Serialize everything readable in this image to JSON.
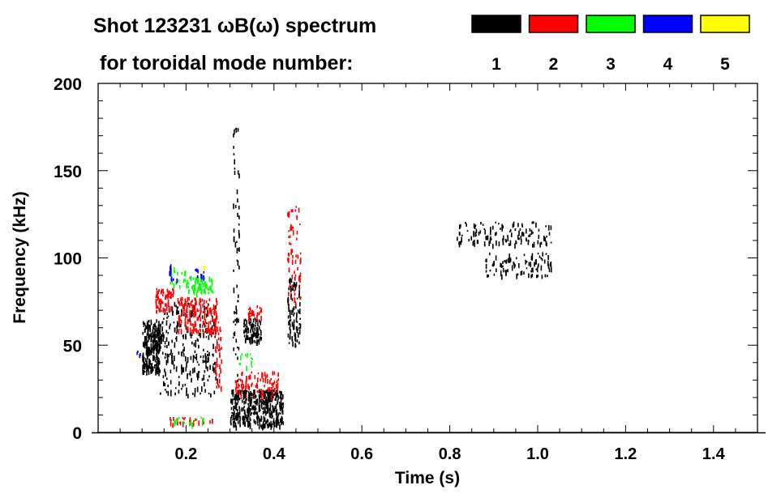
{
  "chart_data": {
    "type": "heatmap",
    "title_line1": "Shot 123231 ωB(ω) spectrum",
    "title_line2": "for toroidal mode number:",
    "xlabel": "Time (s)",
    "ylabel": "Frequency (kHz)",
    "xlim": [
      0,
      1.5
    ],
    "ylim": [
      0,
      200
    ],
    "xticks": [
      0.2,
      0.4,
      0.6,
      0.8,
      1.0,
      1.2,
      1.4
    ],
    "xtick_labels": [
      "0.2",
      "0.4",
      "0.6",
      "0.8",
      "1.0",
      "1.2",
      "1.4"
    ],
    "yticks": [
      0,
      50,
      100,
      150,
      200
    ],
    "ytick_labels": [
      "0",
      "50",
      "100",
      "150",
      "200"
    ],
    "legend": [
      {
        "mode": "1",
        "color": "#000000"
      },
      {
        "mode": "2",
        "color": "#ff0000"
      },
      {
        "mode": "3",
        "color": "#00ff00"
      },
      {
        "mode": "4",
        "color": "#0000ff"
      },
      {
        "mode": "5",
        "color": "#ffff00"
      }
    ],
    "regions": [
      {
        "mode": 1,
        "t": [
          0.1,
          0.14
        ],
        "f": [
          35,
          65
        ],
        "n": 260
      },
      {
        "mode": 1,
        "t": [
          0.14,
          0.27
        ],
        "f": [
          22,
          75
        ],
        "n": 260
      },
      {
        "mode": 1,
        "t": [
          0.3,
          0.42
        ],
        "f": [
          4,
          25
        ],
        "n": 420
      },
      {
        "mode": 1,
        "t": [
          0.33,
          0.37
        ],
        "f": [
          52,
          66
        ],
        "n": 90
      },
      {
        "mode": 1,
        "t": [
          0.43,
          0.46
        ],
        "f": [
          50,
          90
        ],
        "n": 90
      },
      {
        "mode": 1,
        "t": [
          0.305,
          0.32
        ],
        "f": [
          30,
          175
        ],
        "n": 60
      },
      {
        "mode": 1,
        "t": [
          0.81,
          1.03
        ],
        "f": [
          108,
          121
        ],
        "n": 120
      },
      {
        "mode": 1,
        "t": [
          0.88,
          1.03
        ],
        "f": [
          90,
          104
        ],
        "n": 90
      },
      {
        "mode": 2,
        "t": [
          0.13,
          0.17
        ],
        "f": [
          70,
          83
        ],
        "n": 70
      },
      {
        "mode": 2,
        "t": [
          0.18,
          0.27
        ],
        "f": [
          58,
          78
        ],
        "n": 170
      },
      {
        "mode": 2,
        "t": [
          0.265,
          0.28
        ],
        "f": [
          25,
          70
        ],
        "n": 40
      },
      {
        "mode": 2,
        "t": [
          0.31,
          0.41
        ],
        "f": [
          21,
          36
        ],
        "n": 90
      },
      {
        "mode": 2,
        "t": [
          0.34,
          0.37
        ],
        "f": [
          66,
          73
        ],
        "n": 25
      },
      {
        "mode": 2,
        "t": [
          0.43,
          0.46
        ],
        "f": [
          75,
          130
        ],
        "n": 60
      },
      {
        "mode": 2,
        "t": [
          0.16,
          0.26
        ],
        "f": [
          5,
          9
        ],
        "n": 30
      },
      {
        "mode": 3,
        "t": [
          0.2,
          0.26
        ],
        "f": [
          80,
          90
        ],
        "n": 70
      },
      {
        "mode": 3,
        "t": [
          0.16,
          0.2
        ],
        "f": [
          84,
          95
        ],
        "n": 20
      },
      {
        "mode": 3,
        "t": [
          0.17,
          0.25
        ],
        "f": [
          5,
          9
        ],
        "n": 15
      },
      {
        "mode": 3,
        "t": [
          0.32,
          0.35
        ],
        "f": [
          38,
          46
        ],
        "n": 12
      },
      {
        "mode": 4,
        "t": [
          0.16,
          0.18
        ],
        "f": [
          88,
          97
        ],
        "n": 10
      },
      {
        "mode": 4,
        "t": [
          0.22,
          0.24
        ],
        "f": [
          90,
          94
        ],
        "n": 8
      },
      {
        "mode": 4,
        "t": [
          0.085,
          0.095
        ],
        "f": [
          44,
          50
        ],
        "n": 4
      },
      {
        "mode": 5,
        "t": [
          0.238,
          0.242
        ],
        "f": [
          95,
          96
        ],
        "n": 2
      }
    ]
  }
}
